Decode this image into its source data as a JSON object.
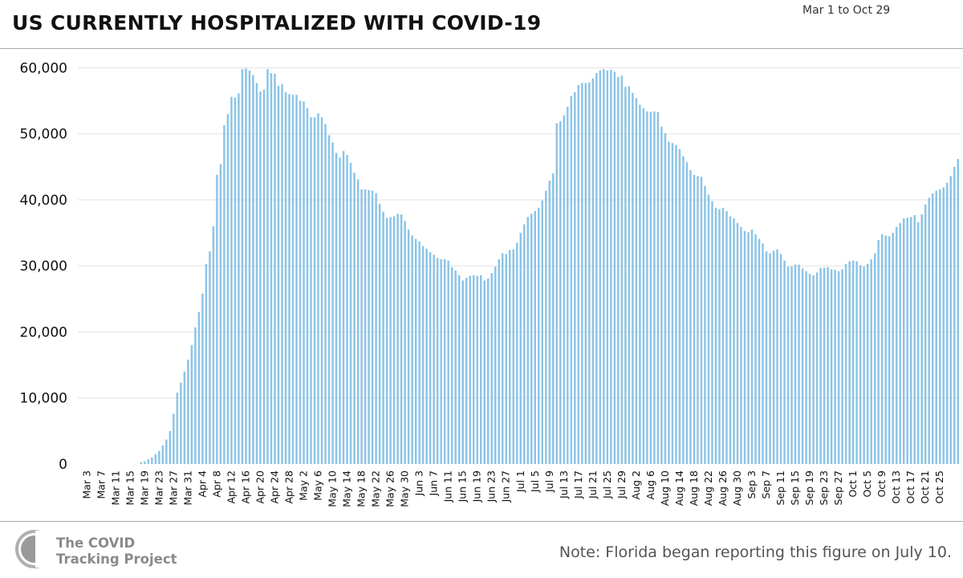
{
  "header": {
    "title": "US CURRENTLY HOSPITALIZED WITH COVID-19",
    "date_range": "Mar 1 to Oct 29"
  },
  "footer": {
    "logo_line1": "The COVID",
    "logo_line2": "Tracking Project",
    "note": "Note: Florida began reporting this figure on July 10."
  },
  "colors": {
    "bar": "#8cc4e6",
    "grid": "#e2e2e2",
    "logo": "#9a9a9a"
  },
  "chart_data": {
    "type": "bar",
    "title": "US CURRENTLY HOSPITALIZED WITH COVID-19",
    "xlabel": "",
    "ylabel": "",
    "ylim": [
      0,
      62000
    ],
    "grid": true,
    "yticks": [
      0,
      10000,
      20000,
      30000,
      40000,
      50000,
      60000
    ],
    "ytick_labels": [
      "0",
      "10,000",
      "20,000",
      "30,000",
      "40,000",
      "50,000",
      "60,000"
    ],
    "xtick_labels": [
      "Mar 3",
      "Mar 7",
      "Mar 11",
      "Mar 15",
      "Mar 19",
      "Mar 23",
      "Mar 27",
      "Mar 31",
      "Apr 4",
      "Apr 8",
      "Apr 12",
      "Apr 16",
      "Apr 20",
      "Apr 24",
      "Apr 28",
      "May 2",
      "May 6",
      "May 10",
      "May 14",
      "May 18",
      "May 22",
      "May 26",
      "May 30",
      "Jun 3",
      "Jun 7",
      "Jun 11",
      "Jun 15",
      "Jun 19",
      "Jun 23",
      "Jun 27",
      "Jul 1",
      "Jul 5",
      "Jul 9",
      "Jul 13",
      "Jul 17",
      "Jul 21",
      "Jul 25",
      "Jul 29",
      "Aug 2",
      "Aug 6",
      "Aug 10",
      "Aug 14",
      "Aug 18",
      "Aug 22",
      "Aug 26",
      "Aug 30",
      "Sep 3",
      "Sep 7",
      "Sep 11",
      "Sep 15",
      "Sep 19",
      "Sep 23",
      "Sep 27",
      "Oct 1",
      "Oct 5",
      "Oct 9",
      "Oct 13",
      "Oct 17",
      "Oct 21",
      "Oct 25"
    ],
    "x_start": "Mar 1",
    "x_end": "Oct 29",
    "values": [
      0,
      0,
      0,
      0,
      0,
      0,
      0,
      0,
      0,
      0,
      0,
      0,
      0,
      0,
      0,
      0,
      0,
      300,
      400,
      700,
      1000,
      1500,
      2000,
      2800,
      3700,
      5000,
      7600,
      10800,
      12300,
      14000,
      15800,
      18000,
      20700,
      23000,
      25800,
      30300,
      32200,
      36000,
      43800,
      45400,
      51300,
      53000,
      55600,
      55500,
      56100,
      59800,
      59900,
      59600,
      58900,
      57700,
      56400,
      56700,
      59800,
      59200,
      59100,
      57300,
      57500,
      56300,
      56000,
      55900,
      55900,
      55000,
      54900,
      53900,
      52500,
      52500,
      53100,
      52500,
      51500,
      49800,
      48700,
      47100,
      46400,
      47400,
      46800,
      45600,
      44100,
      43100,
      41600,
      41600,
      41500,
      41400,
      41000,
      39400,
      38200,
      37300,
      37400,
      37500,
      37900,
      37800,
      36800,
      35500,
      34600,
      34100,
      33700,
      33000,
      32600,
      32100,
      31700,
      31200,
      31000,
      31000,
      30800,
      29800,
      29300,
      28600,
      27800,
      28200,
      28500,
      28600,
      28500,
      28600,
      27800,
      28100,
      28900,
      29900,
      31000,
      31900,
      31800,
      32400,
      32500,
      33500,
      35000,
      36300,
      37400,
      37900,
      38300,
      38800,
      39900,
      41400,
      42900,
      44000,
      51600,
      51900,
      52800,
      54100,
      55700,
      56300,
      57400,
      57700,
      57700,
      57800,
      58400,
      59200,
      59600,
      59800,
      59600,
      59700,
      59400,
      58600,
      58800,
      57100,
      57200,
      56200,
      55400,
      54400,
      53900,
      53400,
      53300,
      53400,
      53300,
      51100,
      50100,
      48800,
      48600,
      48300,
      47700,
      46600,
      45700,
      44500,
      43800,
      43600,
      43500,
      42100,
      40800,
      39800,
      38800,
      38600,
      38800,
      38300,
      37500,
      37200,
      36500,
      35900,
      35300,
      35100,
      35500,
      34800,
      34100,
      33400,
      32200,
      31900,
      32300,
      32500,
      31800,
      30800,
      29900,
      29900,
      30200,
      30200,
      29600,
      29200,
      28800,
      28600,
      29000,
      29700,
      29700,
      29800,
      29500,
      29400,
      29200,
      29500,
      30300,
      30700,
      30800,
      30700,
      30100,
      29900,
      30300,
      31000,
      31900,
      33900,
      34800,
      34600,
      34500,
      35000,
      35900,
      36500,
      37200,
      37300,
      37400,
      37700,
      36600,
      37800,
      39300,
      40300,
      41000,
      41400,
      41600,
      41900,
      42600,
      43600,
      45000,
      46200
    ],
    "series": [
      {
        "name": "",
        "values": "see values"
      }
    ]
  }
}
